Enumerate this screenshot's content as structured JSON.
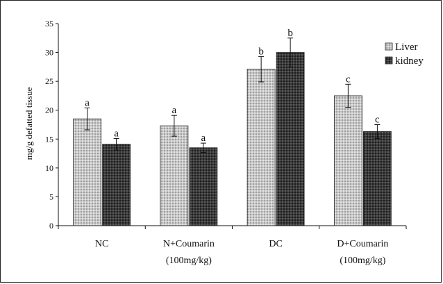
{
  "chart_data": {
    "type": "bar",
    "ylabel": "mg/g defatted tissue",
    "xlabel": "",
    "ylim": [
      0,
      35
    ],
    "yticks": [
      0,
      5,
      10,
      15,
      20,
      25,
      30,
      35
    ],
    "categories": [
      [
        "NC"
      ],
      [
        "N+Coumarin",
        "(100mg/kg)"
      ],
      [
        "DC"
      ],
      [
        "D+Coumarin",
        "(100mg/kg)"
      ]
    ],
    "series": [
      {
        "name": "Liver",
        "pattern": "light-dotted",
        "values": [
          18.5,
          17.3,
          27.1,
          22.5
        ],
        "errors": [
          1.9,
          1.8,
          2.2,
          2.0
        ],
        "labels": [
          "a",
          "a",
          "b",
          "c"
        ]
      },
      {
        "name": "kidney",
        "pattern": "dark-dotted",
        "values": [
          14.1,
          13.5,
          30.0,
          16.3
        ],
        "errors": [
          1.0,
          0.8,
          2.5,
          1.2
        ],
        "labels": [
          "a",
          "a",
          "b",
          "c"
        ]
      }
    ],
    "legend_position": "top-right",
    "grid": false
  }
}
